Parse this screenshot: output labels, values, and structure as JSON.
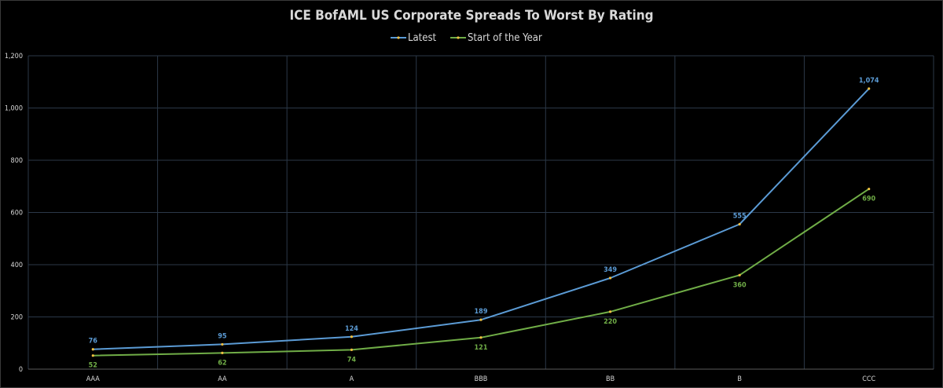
{
  "chart_data": {
    "type": "line",
    "title": "ICE BofAML US Corporate Spreads To Worst By Rating",
    "xlabel": "",
    "ylabel": "",
    "categories": [
      "AAA",
      "AA",
      "A",
      "BBB",
      "BB",
      "B",
      "CCC"
    ],
    "ylim": [
      0,
      1200
    ],
    "yticks": [
      0,
      200,
      400,
      600,
      800,
      1000,
      1200
    ],
    "ytick_labels": [
      "0",
      "200",
      "400",
      "600",
      "800",
      "1,000",
      "1,200"
    ],
    "grid": true,
    "legend_position": "top-center",
    "series": [
      {
        "name": "Latest",
        "color": "#5b9bd5",
        "values": [
          76,
          95,
          124,
          189,
          349,
          555,
          1074
        ],
        "labels": [
          "76",
          "95",
          "124",
          "189",
          "349",
          "555",
          "1,074"
        ],
        "label_position": "above"
      },
      {
        "name": "Start of the Year",
        "color": "#70ad47",
        "values": [
          52,
          62,
          74,
          121,
          220,
          360,
          690
        ],
        "labels": [
          "52",
          "62",
          "74",
          "121",
          "220",
          "360",
          "690"
        ],
        "label_position": "below"
      }
    ]
  }
}
